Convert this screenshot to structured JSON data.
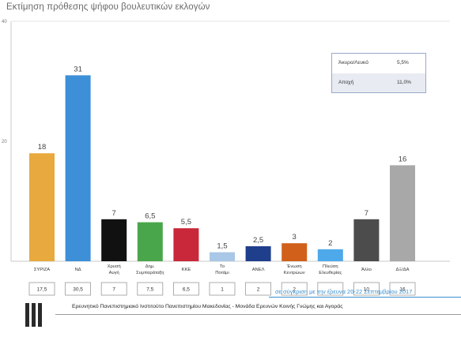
{
  "title": "Εκτίμηση πρόθεσης ψήφου βουλευτικών εκλογών",
  "chart_data": {
    "type": "bar",
    "categories": [
      "ΣΥΡΙΖΑ",
      "ΝΔ",
      "Χρυσή Αυγή",
      "Δημ. Συμπαράταξη",
      "ΚΚΕ",
      "Το Ποτάμι",
      "ΑΝΕΛ",
      "Ένωση Κεντρώων",
      "Πλεύση Ελευθερίας",
      "Άλλο",
      "ΔΞ/ΔΑ"
    ],
    "category_lines": [
      [
        "ΣΥΡΙΖΑ"
      ],
      [
        "ΝΔ"
      ],
      [
        "Χρυσή",
        "Αυγή"
      ],
      [
        "Δημ.",
        "Συμπαράταξη"
      ],
      [
        "ΚΚΕ"
      ],
      [
        "Το",
        "Ποτάμι"
      ],
      [
        "ΑΝΕΛ"
      ],
      [
        "Ένωση",
        "Κεντρώων"
      ],
      [
        "Πλεύση",
        "Ελευθερίας"
      ],
      [
        "Άλλο"
      ],
      [
        "ΔΞ/ΔΑ"
      ]
    ],
    "values": [
      18,
      31,
      7,
      6.5,
      5.5,
      1.5,
      2.5,
      3,
      2,
      7,
      16
    ],
    "value_labels": [
      "18",
      "31",
      "7",
      "6,5",
      "5,5",
      "1,5",
      "2,5",
      "3",
      "2",
      "7",
      "16"
    ],
    "previous_values": [
      "17,5",
      "30,5",
      "7",
      "7,5",
      "6,5",
      "1",
      "2",
      "2",
      "-",
      "10",
      "16"
    ],
    "colors": [
      "#e8a93e",
      "#3d8fd8",
      "#111111",
      "#4aa64a",
      "#c8283a",
      "#a9c7e6",
      "#1f3f8c",
      "#d0601a",
      "#4ea9ea",
      "#4c4c4c",
      "#a8a8a8"
    ],
    "ylim": [
      0,
      40
    ],
    "yticks": [
      "40",
      "20"
    ],
    "legend": [
      {
        "label": "Άκυρο/Λευκό",
        "value": "5,5%"
      },
      {
        "label": "Αποχή",
        "value": "11,0%"
      }
    ],
    "comparison_note": "σε σύγκριση με την έρευνα 20-22 Σεπτεμβρίου 2017"
  },
  "footer": {
    "text": "Ερευνητικό Πανεπιστημιακό Ινστιτούτο Πανεπιστημίου Μακεδονίας - Μονάδα Ερευνών Κοινής Γνώμης και Αγοράς"
  }
}
